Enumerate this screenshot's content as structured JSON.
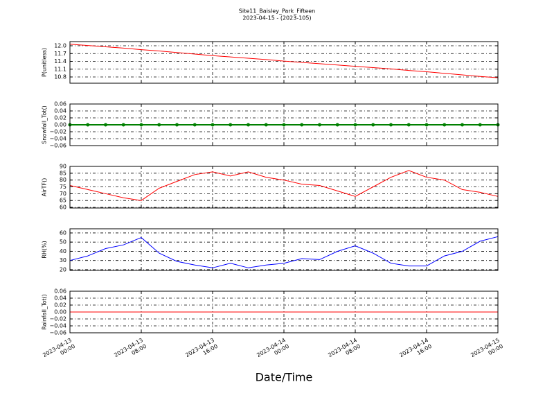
{
  "title": "Site11_Baisley_Park_Fifteen",
  "subtitle": "2023-04-15 - (2023-105)",
  "xlabel": "Date/Time",
  "chart_data": [
    {
      "type": "line",
      "ylabel": "P(unitless)",
      "color": "#ff0000",
      "x": [
        "2023-04-13 00:00",
        "2023-04-13 02:00",
        "2023-04-13 04:00",
        "2023-04-13 06:00",
        "2023-04-13 08:00",
        "2023-04-13 10:00",
        "2023-04-13 12:00",
        "2023-04-13 14:00",
        "2023-04-13 16:00",
        "2023-04-13 18:00",
        "2023-04-13 20:00",
        "2023-04-13 22:00",
        "2023-04-14 00:00",
        "2023-04-14 02:00",
        "2023-04-14 04:00",
        "2023-04-14 06:00",
        "2023-04-14 08:00",
        "2023-04-14 10:00",
        "2023-04-14 12:00",
        "2023-04-14 14:00",
        "2023-04-14 16:00",
        "2023-04-14 18:00",
        "2023-04-14 20:00",
        "2023-04-14 22:00",
        "2023-04-15 00:00"
      ],
      "values": [
        12.06,
        12.01,
        11.96,
        11.91,
        11.85,
        11.8,
        11.74,
        11.68,
        11.62,
        11.57,
        11.52,
        11.47,
        11.41,
        11.36,
        11.31,
        11.26,
        11.21,
        11.16,
        11.11,
        11.05,
        11.0,
        10.94,
        10.88,
        10.82,
        10.77
      ],
      "ylim": [
        10.56,
        12.16
      ],
      "yticks": [
        10.8,
        11.1,
        11.4,
        11.7,
        {
          "value": 12,
          "label": "12.0"
        }
      ],
      "grid": true
    },
    {
      "type": "line",
      "ylabel": "Snowfall_Tot()",
      "color": "#008000",
      "markers": true,
      "x": [
        "2023-04-13 00:00",
        "2023-04-13 02:00",
        "2023-04-13 04:00",
        "2023-04-13 06:00",
        "2023-04-13 08:00",
        "2023-04-13 10:00",
        "2023-04-13 12:00",
        "2023-04-13 14:00",
        "2023-04-13 16:00",
        "2023-04-13 18:00",
        "2023-04-13 20:00",
        "2023-04-13 22:00",
        "2023-04-14 00:00",
        "2023-04-14 02:00",
        "2023-04-14 04:00",
        "2023-04-14 06:00",
        "2023-04-14 08:00",
        "2023-04-14 10:00",
        "2023-04-14 12:00",
        "2023-04-14 14:00",
        "2023-04-14 16:00",
        "2023-04-14 18:00",
        "2023-04-14 20:00",
        "2023-04-14 22:00",
        "2023-04-15 00:00"
      ],
      "values": [
        0,
        0,
        0,
        0,
        0,
        0,
        0,
        0,
        0,
        0,
        0,
        0,
        0,
        0,
        0,
        0,
        0,
        0,
        0,
        0,
        0,
        0,
        0,
        0,
        0
      ],
      "ylim": [
        -0.06,
        0.06
      ],
      "yticks": [
        {
          "value": -0.06,
          "label": "−0.06"
        },
        {
          "value": -0.04,
          "label": "−0.04"
        },
        {
          "value": -0.02,
          "label": "−0.02"
        },
        {
          "value": 0,
          "label": "0.00"
        },
        0.02,
        0.04,
        0.06
      ],
      "grid": true
    },
    {
      "type": "line",
      "ylabel": "AirTF()",
      "color": "#ff0000",
      "x": [
        "2023-04-13 00:00",
        "2023-04-13 02:00",
        "2023-04-13 04:00",
        "2023-04-13 06:00",
        "2023-04-13 08:00",
        "2023-04-13 10:00",
        "2023-04-13 12:00",
        "2023-04-13 14:00",
        "2023-04-13 16:00",
        "2023-04-13 18:00",
        "2023-04-13 20:00",
        "2023-04-13 22:00",
        "2023-04-14 00:00",
        "2023-04-14 02:00",
        "2023-04-14 04:00",
        "2023-04-14 06:00",
        "2023-04-14 08:00",
        "2023-04-14 10:00",
        "2023-04-14 12:00",
        "2023-04-14 14:00",
        "2023-04-14 16:00",
        "2023-04-14 18:00",
        "2023-04-14 20:00",
        "2023-04-14 22:00",
        "2023-04-15 00:00"
      ],
      "values": [
        76,
        73,
        70,
        67,
        65,
        74,
        79,
        84,
        86,
        83,
        86,
        82,
        80,
        77,
        76,
        72,
        68,
        75,
        82,
        87,
        82,
        80,
        73,
        71,
        68
      ],
      "ylim": [
        59.5,
        90
      ],
      "yticks": [
        60,
        65,
        70,
        75,
        80,
        85,
        90
      ],
      "grid": true
    },
    {
      "type": "line",
      "ylabel": "RH(%)",
      "color": "#0000ff",
      "x": [
        "2023-04-13 00:00",
        "2023-04-13 02:00",
        "2023-04-13 04:00",
        "2023-04-13 06:00",
        "2023-04-13 08:00",
        "2023-04-13 10:00",
        "2023-04-13 12:00",
        "2023-04-13 14:00",
        "2023-04-13 16:00",
        "2023-04-13 18:00",
        "2023-04-13 20:00",
        "2023-04-13 22:00",
        "2023-04-14 00:00",
        "2023-04-14 02:00",
        "2023-04-14 04:00",
        "2023-04-14 06:00",
        "2023-04-14 08:00",
        "2023-04-14 10:00",
        "2023-04-14 12:00",
        "2023-04-14 14:00",
        "2023-04-14 16:00",
        "2023-04-14 18:00",
        "2023-04-14 20:00",
        "2023-04-14 22:00",
        "2023-04-15 00:00"
      ],
      "values": [
        30,
        35,
        43,
        47,
        55,
        38,
        29,
        25,
        22,
        27,
        22,
        25,
        27,
        32,
        31,
        40,
        46,
        38,
        27,
        24,
        24,
        35,
        40,
        51,
        56
      ],
      "ylim": [
        19.2,
        64.5
      ],
      "yticks": [
        20,
        30,
        40,
        50,
        60
      ],
      "grid": true
    },
    {
      "type": "line",
      "ylabel": "Rainfall_Tot()",
      "color": "#ff0000",
      "x": [
        "2023-04-13 00:00",
        "2023-04-13 02:00",
        "2023-04-13 04:00",
        "2023-04-13 06:00",
        "2023-04-13 08:00",
        "2023-04-13 10:00",
        "2023-04-13 12:00",
        "2023-04-13 14:00",
        "2023-04-13 16:00",
        "2023-04-13 18:00",
        "2023-04-13 20:00",
        "2023-04-13 22:00",
        "2023-04-14 00:00",
        "2023-04-14 02:00",
        "2023-04-14 04:00",
        "2023-04-14 06:00",
        "2023-04-14 08:00",
        "2023-04-14 10:00",
        "2023-04-14 12:00",
        "2023-04-14 14:00",
        "2023-04-14 16:00",
        "2023-04-14 18:00",
        "2023-04-14 20:00",
        "2023-04-14 22:00",
        "2023-04-15 00:00"
      ],
      "values": [
        0,
        0,
        0,
        0,
        0,
        0,
        0,
        0,
        0,
        0,
        0,
        0,
        0,
        0,
        0,
        0,
        0,
        0,
        0,
        0,
        0,
        0,
        0,
        0,
        0
      ],
      "ylim": [
        -0.06,
        0.06
      ],
      "yticks": [
        {
          "value": -0.06,
          "label": "−0.06"
        },
        {
          "value": -0.04,
          "label": "−0.04"
        },
        {
          "value": -0.02,
          "label": "−0.02"
        },
        {
          "value": 0,
          "label": "0.00"
        },
        0.02,
        0.04,
        0.06
      ],
      "grid": true,
      "xlim": [
        "2023-04-13 00:00",
        "2023-04-15 00:00"
      ],
      "xticks": [
        {
          "value": "2023-04-13 00:00",
          "label": "2023-04-13\n00:00"
        },
        {
          "value": "2023-04-13 08:00",
          "label": "2023-04-13\n08:00"
        },
        {
          "value": "2023-04-13 16:00",
          "label": "2023-04-13\n16:00"
        },
        {
          "value": "2023-04-14 00:00",
          "label": "2023-04-14\n00:00"
        },
        {
          "value": "2023-04-14 08:00",
          "label": "2023-04-14\n08:00"
        },
        {
          "value": "2023-04-14 16:00",
          "label": "2023-04-14\n16:00"
        },
        {
          "value": "2023-04-15 00:00",
          "label": "2023-04-15\n00:00"
        }
      ]
    }
  ]
}
